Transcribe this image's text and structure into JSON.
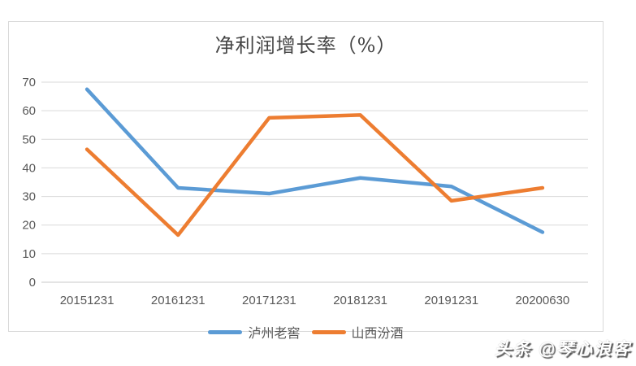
{
  "chart": {
    "watermark": "头条 @琴心浪客",
    "colors": {
      "blue": "#5B9BD5",
      "orange": "#ED7D31",
      "gridline": "#D9D9D9",
      "baseline": "#C9C9C9",
      "axis_text": "#595959",
      "title_text": "#454545",
      "frame_border": "#D9D9D9"
    }
  },
  "chart_data": {
    "type": "line",
    "title": "净利润增长率（%）",
    "categories": [
      "20151231",
      "20161231",
      "20171231",
      "20181231",
      "20191231",
      "20200630"
    ],
    "series": [
      {
        "id": "luzhou-laojiao",
        "name": "泸州老窖",
        "color": "#5B9BD5",
        "values": [
          67.5,
          33,
          31,
          36.5,
          33.5,
          17.5
        ]
      },
      {
        "id": "shanxi-fenjiu",
        "name": "山西汾酒",
        "color": "#ED7D31",
        "values": [
          46.5,
          16.5,
          57.5,
          58.5,
          28.5,
          33
        ]
      }
    ],
    "ylim": [
      0,
      70
    ],
    "ytick_step": 10,
    "grid": true,
    "legend_position": "bottom"
  }
}
